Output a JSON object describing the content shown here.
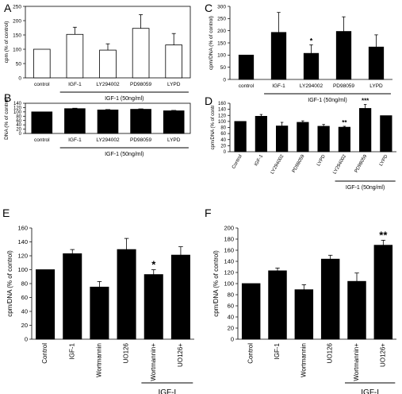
{
  "figure": {
    "panel_letters": [
      "A",
      "B",
      "C",
      "D",
      "E",
      "F"
    ]
  },
  "chart_data": [
    {
      "panel": "A",
      "type": "bar",
      "ylabel": "cpm (% of control)",
      "ylim": [
        0,
        250
      ],
      "yticks": [
        0,
        50,
        100,
        150,
        200,
        250
      ],
      "categories": [
        "control",
        "IGF-1",
        "LY294002",
        "PD98059",
        "LYPD"
      ],
      "values": [
        100,
        152,
        97,
        173,
        115
      ],
      "errors": [
        0,
        25,
        22,
        48,
        40
      ],
      "annotations": [
        "",
        "",
        "",
        "",
        ""
      ],
      "group_label": "IGF-1 (50ng/ml)",
      "group_start": 1,
      "tick_rotation": 0,
      "bar_color": "#ffffff"
    },
    {
      "panel": "B",
      "type": "bar",
      "ylabel": "DNA (% of control)",
      "ylim": [
        0,
        140
      ],
      "yticks": [
        0,
        20,
        40,
        60,
        80,
        100,
        120,
        140
      ],
      "categories": [
        "control",
        "IGF-1",
        "LY294002",
        "PD98059",
        "LYPD"
      ],
      "values": [
        100,
        115,
        109,
        112,
        105
      ],
      "errors": [
        0,
        2,
        2,
        2,
        2
      ],
      "annotations": [
        "",
        "",
        "",
        "",
        ""
      ],
      "group_label": "IGF-1 (50ng/ml)",
      "group_start": 1,
      "tick_rotation": 0,
      "bar_color": "#000000"
    },
    {
      "panel": "C",
      "type": "bar",
      "ylabel": "cpm/DNA (% of control)",
      "ylim": [
        0,
        300
      ],
      "yticks": [
        0,
        50,
        100,
        150,
        200,
        250,
        300
      ],
      "categories": [
        "control",
        "IGF-1",
        "LY294002",
        "PD98059",
        "LYPD"
      ],
      "values": [
        100,
        193,
        107,
        197,
        133
      ],
      "errors": [
        0,
        82,
        35,
        60,
        50
      ],
      "annotations": [
        "",
        "",
        "*",
        "",
        ""
      ],
      "group_label": "IGF-1 (50ng/ml)",
      "group_start": 1,
      "tick_rotation": 0,
      "bar_color": "#000000"
    },
    {
      "panel": "D",
      "type": "bar",
      "ylabel": "cpm/DNA (% of contr",
      "ylim": [
        0,
        160
      ],
      "yticks": [
        0,
        20,
        40,
        60,
        80,
        100,
        120,
        140,
        160
      ],
      "categories": [
        "Control",
        "IGF-1",
        "LY294002",
        "PD98059",
        "LYPD",
        "LY294002",
        "PD98059",
        "LYPD"
      ],
      "values": [
        100,
        117,
        85,
        97,
        84,
        81,
        143,
        119
      ],
      "errors": [
        0,
        6,
        12,
        5,
        6,
        3,
        13,
        0
      ],
      "annotations": [
        "",
        "",
        "",
        "",
        "",
        "**",
        "***",
        ""
      ],
      "group_label": "IGF-1 (50ng/ml)",
      "group_start": 5,
      "tick_rotation": -60,
      "bar_color": "#000000"
    },
    {
      "panel": "E",
      "type": "bar",
      "ylabel": "cpm/DNA (% of control)",
      "ylim": [
        0,
        160
      ],
      "yticks": [
        0,
        20,
        40,
        60,
        80,
        100,
        120,
        140,
        160
      ],
      "categories": [
        "Control",
        "IGF-1",
        "Wortmannin",
        "UO126",
        "Wortmannin+",
        "UO126+"
      ],
      "values": [
        100,
        123,
        75,
        129,
        93,
        121
      ],
      "errors": [
        0,
        6,
        8,
        16,
        7,
        12
      ],
      "annotations": [
        "",
        "",
        "",
        "",
        "*",
        ""
      ],
      "group_label": "IGF-I",
      "group_start": 4,
      "tick_rotation": -90,
      "bar_color": "#000000"
    },
    {
      "panel": "F",
      "type": "bar",
      "ylabel": "cpm/DNA (% of control)",
      "ylim": [
        0,
        200
      ],
      "yticks": [
        0,
        20,
        40,
        60,
        80,
        100,
        120,
        140,
        160,
        180,
        200
      ],
      "categories": [
        "Control",
        "IGF-1",
        "Wortmannin",
        "UO126",
        "Wortmannin+",
        "UO126+"
      ],
      "values": [
        100,
        123,
        89,
        144,
        104,
        169
      ],
      "errors": [
        0,
        5,
        9,
        7,
        15,
        9
      ],
      "annotations": [
        "",
        "",
        "",
        "",
        "",
        "**"
      ],
      "group_label": "IGF-I",
      "group_start": 4,
      "tick_rotation": -90,
      "bar_color": "#000000"
    }
  ]
}
